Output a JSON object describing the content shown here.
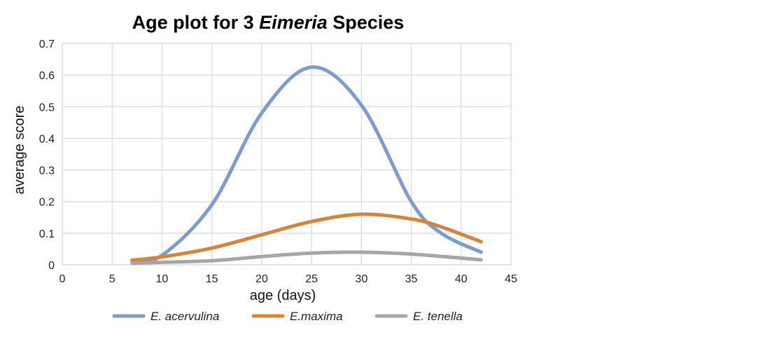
{
  "chart_data": {
    "type": "line",
    "title": {
      "prefix": "Age plot for 3 ",
      "italic": "Eimeria",
      "suffix": " Species"
    },
    "xlabel": "age (days)",
    "ylabel": "average score",
    "xlim": [
      0,
      45
    ],
    "ylim": [
      0,
      0.7
    ],
    "xticks": [
      0,
      5,
      10,
      15,
      20,
      25,
      30,
      35,
      40,
      45
    ],
    "yticks": [
      0,
      0.1,
      0.2,
      0.3,
      0.4,
      0.5,
      0.6,
      0.7
    ],
    "xtick_labels": [
      "0",
      "5",
      "10",
      "15",
      "20",
      "25",
      "30",
      "35",
      "40",
      "45"
    ],
    "ytick_labels": [
      "0",
      "0.1",
      "0.2",
      "0.3",
      "0.4",
      "0.5",
      "0.6",
      "0.7"
    ],
    "grid": true,
    "legend_position": "bottom",
    "smooth": true,
    "series": [
      {
        "name": "E. acervulina",
        "color": "#7b9bd1",
        "x": [
          7,
          10,
          15,
          20,
          25,
          30,
          35,
          38,
          42
        ],
        "y": [
          0.01,
          0.03,
          0.19,
          0.48,
          0.625,
          0.505,
          0.2,
          0.1,
          0.04
        ]
      },
      {
        "name": "E.maxima",
        "color": "#d5843a",
        "x": [
          7,
          10,
          15,
          20,
          25,
          30,
          35,
          38,
          42
        ],
        "y": [
          0.015,
          0.025,
          0.053,
          0.095,
          0.137,
          0.16,
          0.145,
          0.12,
          0.073
        ]
      },
      {
        "name": "E. tenella",
        "color": "#a6a6a6",
        "x": [
          7,
          10,
          15,
          20,
          25,
          30,
          35,
          42
        ],
        "y": [
          0.005,
          0.008,
          0.013,
          0.026,
          0.037,
          0.04,
          0.034,
          0.016
        ]
      }
    ]
  }
}
